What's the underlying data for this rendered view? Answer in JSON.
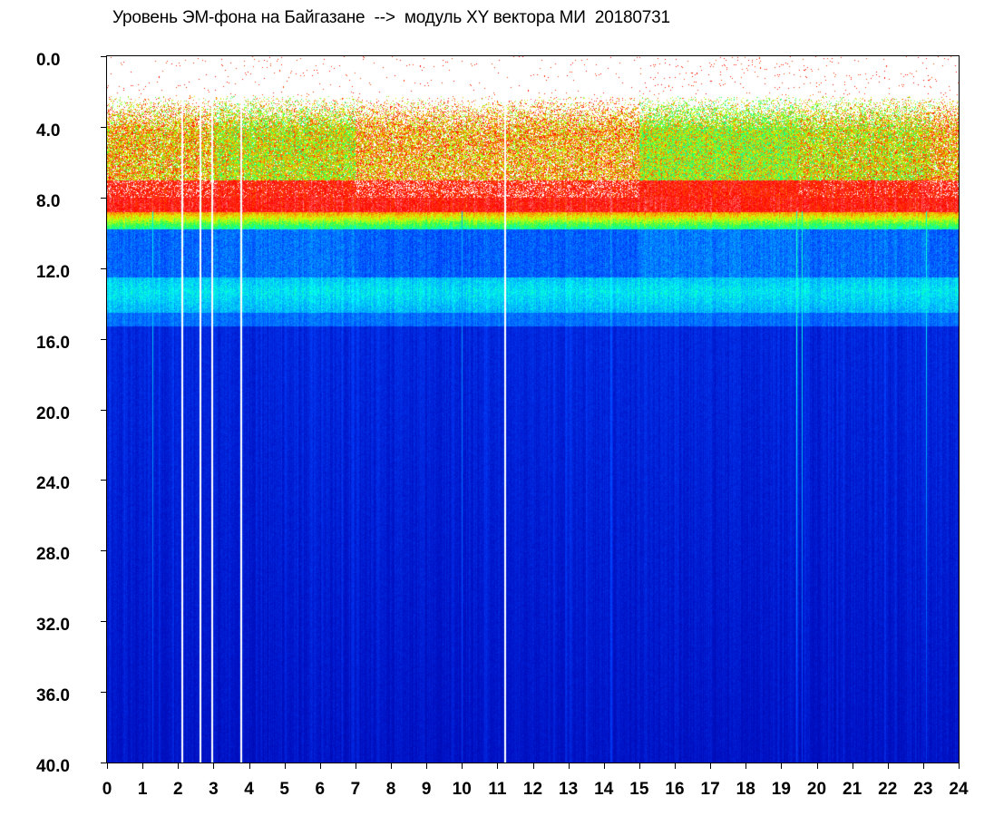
{
  "chart_data": {
    "type": "heatmap",
    "title": "Уровень ЭМ-фона на Байгазане  -->  модуль XY вектора МИ  20180731",
    "x_ticks": [
      "0",
      "1",
      "2",
      "3",
      "4",
      "5",
      "6",
      "7",
      "8",
      "9",
      "10",
      "11",
      "12",
      "13",
      "14",
      "15",
      "16",
      "17",
      "18",
      "19",
      "20",
      "21",
      "22",
      "23",
      "24"
    ],
    "y_ticks": [
      "0.0",
      "4.0",
      "8.0",
      "12.0",
      "16.0",
      "20.0",
      "24.0",
      "28.0",
      "32.0",
      "36.0",
      "40.0"
    ],
    "xlim": [
      0,
      24
    ],
    "ylim": [
      0,
      40
    ],
    "y_inverted": true,
    "colormap": [
      "#ffffff",
      "#ff0000",
      "#ffff00",
      "#00ff66",
      "#00ffff",
      "#0066ff",
      "#0022cc",
      "#0000aa"
    ],
    "background_level_by_row": [
      {
        "y": 0.0,
        "level": "white"
      },
      {
        "y": 2.0,
        "level": "sparse red"
      },
      {
        "y": 4.0,
        "level": "red-yellow-green"
      },
      {
        "y": 8.0,
        "level": "red"
      },
      {
        "y": 9.0,
        "level": "yellow-green"
      },
      {
        "y": 10.0,
        "level": "blue"
      },
      {
        "y": 13.0,
        "level": "cyan"
      },
      {
        "y": 15.0,
        "level": "blue"
      },
      {
        "y": 40.0,
        "level": "dark blue"
      }
    ],
    "gaps_hours": [
      2.1,
      2.6,
      2.95,
      3.75,
      11.2
    ],
    "grid": false
  }
}
